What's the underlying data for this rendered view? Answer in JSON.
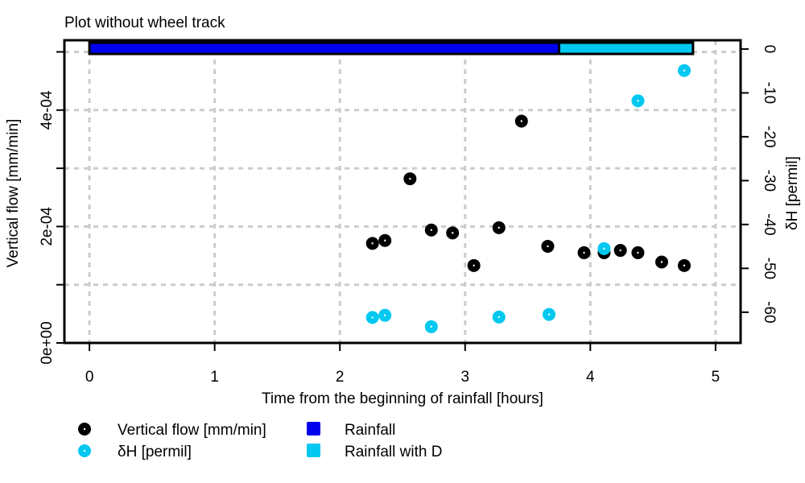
{
  "chart_data": {
    "type": "scatter",
    "title": "Plot without wheel track",
    "xlabel": "Time from the beginning of rainfall [hours]",
    "ylabel_left": "Vertical flow [mm/min]",
    "ylabel_right": "δH [permil]",
    "xlim": [
      -0.2,
      5.2
    ],
    "ylim_left": [
      0,
      0.00052
    ],
    "ylim_right": [
      -67,
      2
    ],
    "x_ticks": [
      "0",
      "1",
      "2",
      "3",
      "4",
      "5"
    ],
    "x_tick_values": [
      0,
      1,
      2,
      3,
      4,
      5
    ],
    "y_left_ticks": [
      "0e+00",
      "2e-04",
      "4e-04"
    ],
    "y_left_tick_values": [
      0,
      0.0002,
      0.0004
    ],
    "y_left_minor_values": [
      0.0001,
      0.0003,
      0.0005
    ],
    "y_right_ticks": [
      "0",
      "-10",
      "-20",
      "-30",
      "-40",
      "-50",
      "-60"
    ],
    "y_right_tick_values": [
      0,
      -10,
      -20,
      -30,
      -40,
      -50,
      -60
    ],
    "grid": true,
    "legend_position": "bottom-left",
    "bands": [
      {
        "name": "Rainfall",
        "x_start": 0.0,
        "x_end": 3.75,
        "color": "#0000ee"
      },
      {
        "name": "Rainfall with D",
        "x_start": 3.75,
        "x_end": 4.82,
        "color": "#00c8f0"
      }
    ],
    "series": [
      {
        "name": "Vertical flow [mm/min]",
        "axis": "left",
        "color": "#000000",
        "x": [
          2.26,
          2.36,
          2.56,
          2.73,
          2.9,
          3.07,
          3.27,
          3.45,
          3.66,
          3.95,
          4.11,
          4.24,
          4.38,
          4.57,
          4.75
        ],
        "y": [
          0.000171,
          0.000176,
          0.000282,
          0.000194,
          0.000189,
          0.000133,
          0.000198,
          0.000381,
          0.000166,
          0.000155,
          0.000155,
          0.000159,
          0.000155,
          0.000139,
          0.000133
        ]
      },
      {
        "name": "δH [permil]",
        "axis": "right",
        "color": "#00c8f0",
        "x": [
          2.26,
          2.36,
          2.73,
          3.27,
          3.67,
          4.11,
          4.38,
          4.75
        ],
        "y": [
          -61.2,
          -60.7,
          -63.3,
          -61.1,
          -60.5,
          -45.5,
          -11.8,
          -4.9
        ]
      }
    ],
    "legend": [
      {
        "label": "Vertical flow [mm/min]",
        "symbol": "circle",
        "color": "#000000"
      },
      {
        "label": "δH [permil]",
        "symbol": "circle",
        "color": "#00c8f0"
      },
      {
        "label": "Rainfall",
        "symbol": "square",
        "color": "#0000ee"
      },
      {
        "label": "Rainfall with D",
        "symbol": "square",
        "color": "#00c8f0"
      }
    ]
  }
}
